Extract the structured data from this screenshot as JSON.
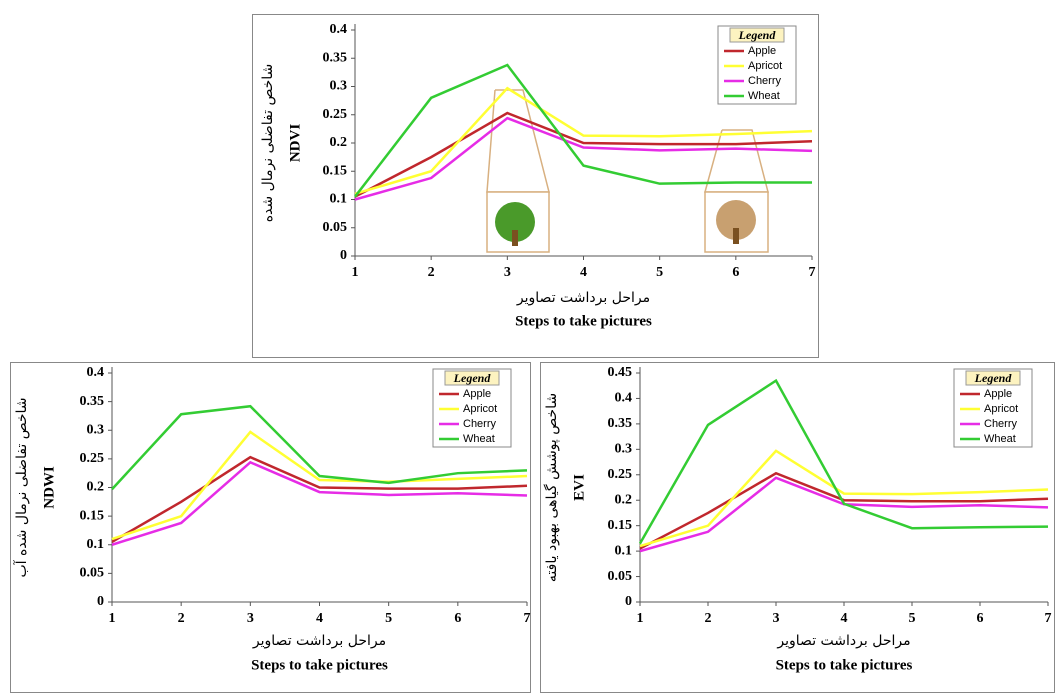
{
  "chart_data": [
    {
      "type": "line",
      "ylabel": "NDVI",
      "ylabel_fa": "شاخص تفاضلی نرمال شده",
      "xlabel_fa": "مراحل برداشت تصاویر",
      "xlabel": "Steps to take pictures",
      "legend_title": "Legend",
      "legend": "upper right",
      "x": [
        1,
        2,
        3,
        4,
        5,
        6,
        7
      ],
      "xlim": [
        1,
        7
      ],
      "xticks": [
        1,
        2,
        3,
        4,
        5,
        6,
        7
      ],
      "ylim": [
        0,
        0.4
      ],
      "yticks": [
        0,
        0.05,
        0.1,
        0.15,
        0.2,
        0.25,
        0.3,
        0.35,
        0.4
      ],
      "series": [
        {
          "name": "Apple",
          "color": "#c0272d",
          "values": [
            0.105,
            0.175,
            0.253,
            0.2,
            0.198,
            0.198,
            0.203
          ]
        },
        {
          "name": "Apricot",
          "color": "#ffff33",
          "values": [
            0.11,
            0.15,
            0.297,
            0.213,
            0.212,
            0.216,
            0.221
          ]
        },
        {
          "name": "Cherry",
          "color": "#e62ce6",
          "values": [
            0.1,
            0.138,
            0.244,
            0.192,
            0.187,
            0.19,
            0.186
          ]
        },
        {
          "name": "Wheat",
          "color": "#33cc33",
          "values": [
            0.105,
            0.28,
            0.338,
            0.16,
            0.128,
            0.13,
            0.13
          ]
        }
      ]
    },
    {
      "type": "line",
      "ylabel": "NDWI",
      "ylabel_fa": "شاخص تفاضلی نرمال شده آب",
      "xlabel_fa": "مراحل برداشت تصاویر",
      "xlabel": "Steps to take pictures",
      "legend_title": "Legend",
      "legend": "upper right",
      "x": [
        1,
        2,
        3,
        4,
        5,
        6,
        7
      ],
      "xlim": [
        1,
        7
      ],
      "xticks": [
        1,
        2,
        3,
        4,
        5,
        6,
        7
      ],
      "ylim": [
        0,
        0.4
      ],
      "yticks": [
        0,
        0.05,
        0.1,
        0.15,
        0.2,
        0.25,
        0.3,
        0.35,
        0.4
      ],
      "series": [
        {
          "name": "Apple",
          "color": "#c0272d",
          "values": [
            0.105,
            0.175,
            0.253,
            0.2,
            0.198,
            0.198,
            0.203
          ]
        },
        {
          "name": "Apricot",
          "color": "#ffff33",
          "values": [
            0.11,
            0.15,
            0.297,
            0.213,
            0.21,
            0.215,
            0.22
          ]
        },
        {
          "name": "Cherry",
          "color": "#e62ce6",
          "values": [
            0.1,
            0.138,
            0.244,
            0.192,
            0.187,
            0.19,
            0.186
          ]
        },
        {
          "name": "Wheat",
          "color": "#33cc33",
          "values": [
            0.197,
            0.328,
            0.342,
            0.22,
            0.208,
            0.225,
            0.23
          ]
        }
      ]
    },
    {
      "type": "line",
      "ylabel": "EVI",
      "ylabel_fa": "شاخص پوشش گیاهی بهبود یافته",
      "xlabel_fa": "مراحل برداشت تصاویر",
      "xlabel": "Steps to take pictures",
      "legend_title": "Legend",
      "legend": "upper right",
      "x": [
        1,
        2,
        3,
        4,
        5,
        6,
        7
      ],
      "xlim": [
        1,
        7
      ],
      "xticks": [
        1,
        2,
        3,
        4,
        5,
        6,
        7
      ],
      "ylim": [
        0,
        0.45
      ],
      "yticks": [
        0,
        0.05,
        0.1,
        0.15,
        0.2,
        0.25,
        0.3,
        0.35,
        0.4,
        0.45
      ],
      "series": [
        {
          "name": "Apple",
          "color": "#c0272d",
          "values": [
            0.105,
            0.175,
            0.253,
            0.2,
            0.198,
            0.198,
            0.203
          ]
        },
        {
          "name": "Apricot",
          "color": "#ffff33",
          "values": [
            0.11,
            0.15,
            0.297,
            0.213,
            0.212,
            0.216,
            0.221
          ]
        },
        {
          "name": "Cherry",
          "color": "#e62ce6",
          "values": [
            0.1,
            0.138,
            0.244,
            0.192,
            0.187,
            0.19,
            0.186
          ]
        },
        {
          "name": "Wheat",
          "color": "#33cc33",
          "values": [
            0.115,
            0.348,
            0.435,
            0.193,
            0.145,
            0.147,
            0.148
          ]
        }
      ]
    }
  ]
}
